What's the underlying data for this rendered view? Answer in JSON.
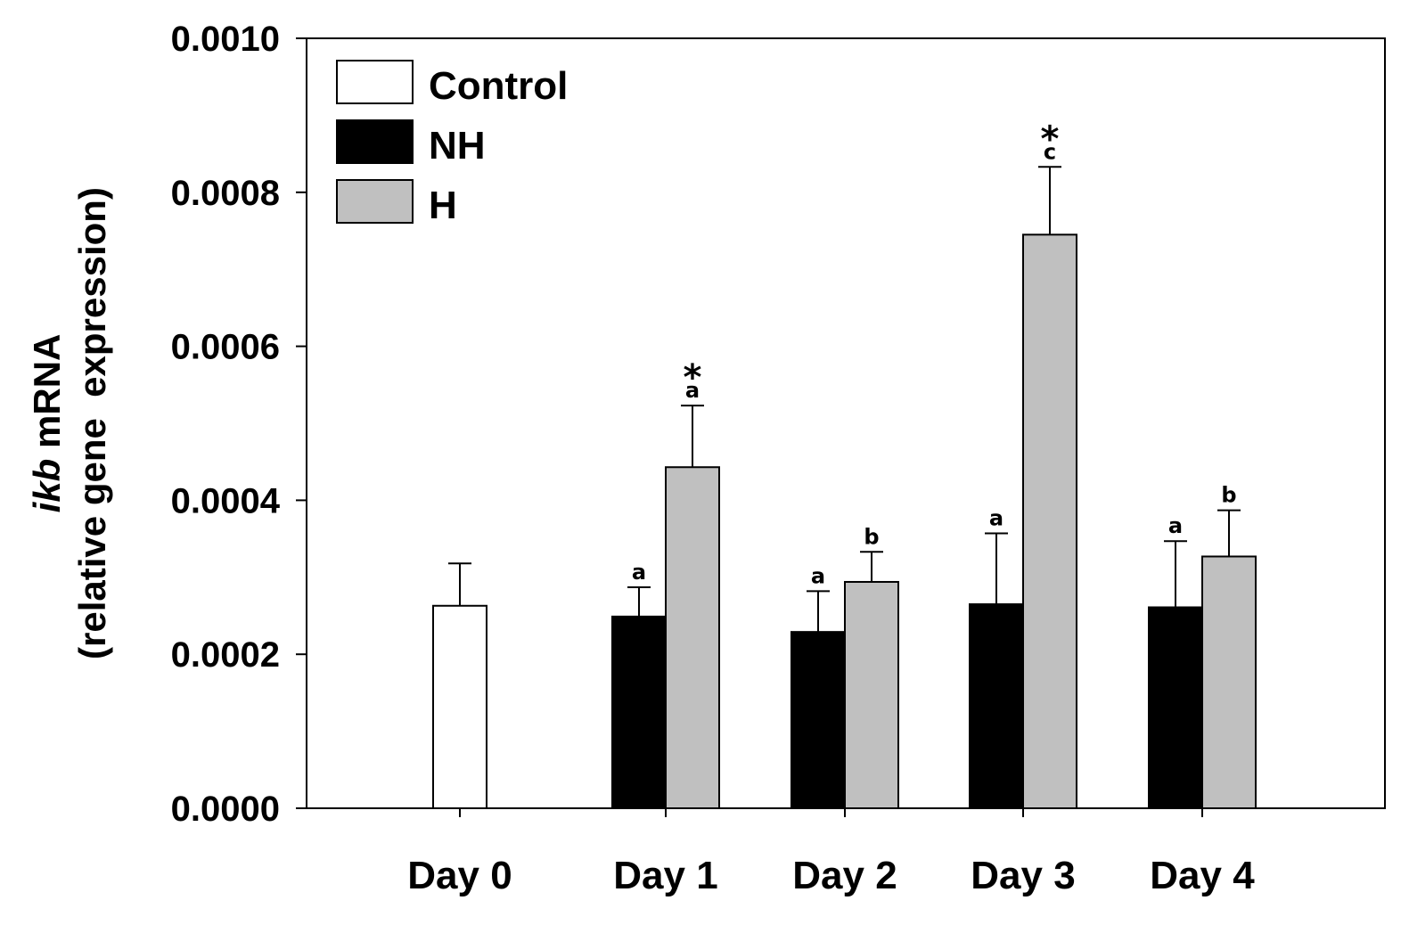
{
  "chart_data": {
    "type": "bar",
    "title": "",
    "xlabel": "",
    "ylabel_line1_italic": "ikb",
    "ylabel_line1_rest": " mRNA",
    "ylabel_line2": "(relative gene  expression)",
    "ylim": [
      0,
      0.001
    ],
    "yticks": [
      "0.0000",
      "0.0002",
      "0.0004",
      "0.0006",
      "0.0008",
      "0.0010"
    ],
    "ytick_values": [
      0,
      0.0002,
      0.0004,
      0.0006,
      0.0008,
      0.001
    ],
    "categories": [
      "Day 0",
      "Day 1",
      "Day 2",
      "Day 3",
      "Day 4"
    ],
    "legend_position": "top-left",
    "series": [
      {
        "name": "Control",
        "color": "#ffffff",
        "values": [
          0.000263,
          null,
          null,
          null,
          null
        ],
        "errors": [
          5.5e-05,
          null,
          null,
          null,
          null
        ],
        "letters": [
          "",
          null,
          null,
          null,
          null
        ],
        "stars": [
          "",
          null,
          null,
          null,
          null
        ]
      },
      {
        "name": "NH",
        "color": "#000000",
        "values": [
          null,
          0.000249,
          0.000229,
          0.000265,
          0.000261
        ],
        "errors": [
          null,
          3.8e-05,
          5.3e-05,
          9.2e-05,
          8.6e-05
        ],
        "letters": [
          null,
          "a",
          "a",
          "a",
          "a"
        ],
        "stars": [
          null,
          "",
          "",
          "",
          ""
        ]
      },
      {
        "name": "H",
        "color": "#c0c0c0",
        "values": [
          null,
          0.000443,
          0.000294,
          0.000745,
          0.000327
        ],
        "errors": [
          null,
          8e-05,
          3.9e-05,
          8.8e-05,
          6e-05
        ],
        "letters": [
          null,
          "a",
          "b",
          "c",
          "b"
        ],
        "stars": [
          null,
          "*",
          "",
          "*",
          ""
        ]
      }
    ]
  }
}
